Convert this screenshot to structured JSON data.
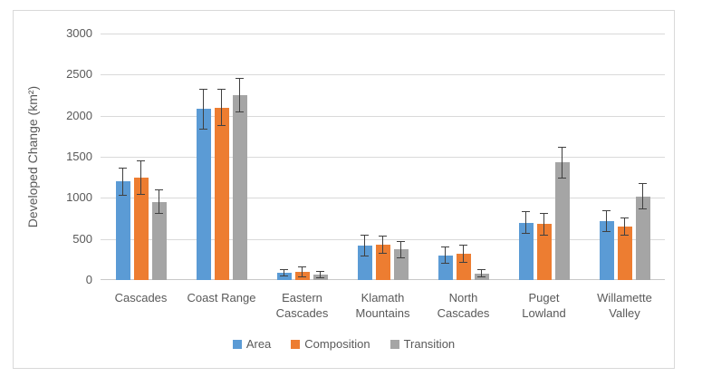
{
  "chart_data": {
    "type": "bar",
    "title": "",
    "xlabel": "",
    "ylabel": "Developed Change (km²)",
    "ylim": [
      0,
      3000
    ],
    "yticks": [
      0,
      500,
      1000,
      1500,
      2000,
      2500,
      3000
    ],
    "grid": true,
    "legend_position": "bottom",
    "categories": [
      "Cascades",
      "Coast Range",
      "Eastern Cascades",
      "Klamath Mountains",
      "North Cascades",
      "Puget Lowland",
      "Willamette Valley"
    ],
    "category_label_lines": [
      [
        "Cascades"
      ],
      [
        "Coast Range"
      ],
      [
        "Eastern",
        "Cascades"
      ],
      [
        "Klamath",
        "Mountains"
      ],
      [
        "North",
        "Cascades"
      ],
      [
        "Puget",
        "Lowland"
      ],
      [
        "Willamette",
        "Valley"
      ]
    ],
    "series": [
      {
        "name": "Area",
        "color": "#5B9BD5",
        "values": [
          1200,
          2080,
          90,
          420,
          300,
          700,
          720
        ],
        "errors": [
          170,
          250,
          45,
          130,
          105,
          135,
          130
        ]
      },
      {
        "name": "Composition",
        "color": "#ED7D31",
        "values": [
          1250,
          2100,
          100,
          430,
          320,
          680,
          650
        ],
        "errors": [
          210,
          225,
          70,
          115,
          105,
          135,
          110
        ]
      },
      {
        "name": "Transition",
        "color": "#A5A5A5",
        "values": [
          950,
          2250,
          70,
          370,
          80,
          1430,
          1020
        ],
        "errors": [
          150,
          210,
          45,
          105,
          50,
          190,
          155
        ]
      }
    ],
    "error_bar_color": "#404040",
    "gridline_color": "#D9D9D9",
    "axis_line_color": "#C8C8C8",
    "text_color": "#595959"
  }
}
